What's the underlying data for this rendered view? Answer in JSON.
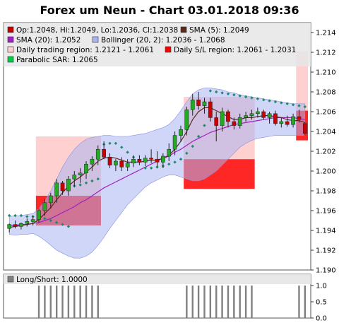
{
  "title": "Forex um Neun - Chart 03.01.2018 09:36",
  "legend": [
    {
      "label": "Op:1.2048, Hi:1.2049, Lo:1.2036, Cl:1.2038",
      "color": "#c00000"
    },
    {
      "label": "SMA (5): 1.2049",
      "color": "#5a2a1a"
    },
    {
      "label": "SMA (20): 1.2052",
      "color": "#a020c0"
    },
    {
      "label": "Bollinger (20, 2): 1.2036 - 1.2068",
      "color": "#aab4f0"
    },
    {
      "label": "Daily trading region: 1.2121 - 1.2061",
      "color": "#ffd0d0"
    },
    {
      "label": "Daily S/L region: 1.2061 - 1.2031",
      "color": "#ff0000"
    },
    {
      "label": "Parabolic SAR: 1.2065",
      "color": "#00cc44"
    }
  ],
  "lower_legend": {
    "label": "Long/Short: 1.0000",
    "color": "#808080"
  },
  "chart_data": [
    {
      "type": "candlestick",
      "ylim": [
        1.19,
        1.215
      ],
      "yticks": [
        "1.190",
        "1.192",
        "1.194",
        "1.196",
        "1.198",
        "1.200",
        "1.202",
        "1.204",
        "1.206",
        "1.208",
        "1.210",
        "1.212",
        "1.214"
      ],
      "candles": [
        {
          "o": 1.1942,
          "h": 1.1947,
          "l": 1.1938,
          "c": 1.1946
        },
        {
          "o": 1.1946,
          "h": 1.195,
          "l": 1.1942,
          "c": 1.1944
        },
        {
          "o": 1.1944,
          "h": 1.1948,
          "l": 1.1941,
          "c": 1.1947
        },
        {
          "o": 1.1947,
          "h": 1.1952,
          "l": 1.1944,
          "c": 1.1949
        },
        {
          "o": 1.1949,
          "h": 1.1955,
          "l": 1.1945,
          "c": 1.1951
        },
        {
          "o": 1.1951,
          "h": 1.1962,
          "l": 1.1948,
          "c": 1.196
        },
        {
          "o": 1.196,
          "h": 1.1972,
          "l": 1.1955,
          "c": 1.1968
        },
        {
          "o": 1.1968,
          "h": 1.1978,
          "l": 1.1962,
          "c": 1.1975
        },
        {
          "o": 1.1975,
          "h": 1.1992,
          "l": 1.1968,
          "c": 1.1988
        },
        {
          "o": 1.1988,
          "h": 1.199,
          "l": 1.1976,
          "c": 1.198
        },
        {
          "o": 1.198,
          "h": 1.1995,
          "l": 1.1975,
          "c": 1.1992
        },
        {
          "o": 1.1992,
          "h": 1.2,
          "l": 1.1984,
          "c": 1.1996
        },
        {
          "o": 1.1996,
          "h": 1.2003,
          "l": 1.1988,
          "c": 1.1998
        },
        {
          "o": 1.1998,
          "h": 1.201,
          "l": 1.1992,
          "c": 1.2007
        },
        {
          "o": 1.2007,
          "h": 1.2015,
          "l": 1.2,
          "c": 1.2012
        },
        {
          "o": 1.2012,
          "h": 1.2026,
          "l": 1.2006,
          "c": 1.2022
        },
        {
          "o": 1.2022,
          "h": 1.203,
          "l": 1.2012,
          "c": 1.2014
        },
        {
          "o": 1.2014,
          "h": 1.2018,
          "l": 1.2003,
          "c": 1.2006
        },
        {
          "o": 1.2006,
          "h": 1.2012,
          "l": 1.2,
          "c": 1.201
        },
        {
          "o": 1.201,
          "h": 1.2014,
          "l": 1.2,
          "c": 1.2004
        },
        {
          "o": 1.2004,
          "h": 1.2012,
          "l": 1.2,
          "c": 1.2008
        },
        {
          "o": 1.2008,
          "h": 1.2016,
          "l": 1.2004,
          "c": 1.2012
        },
        {
          "o": 1.2012,
          "h": 1.2016,
          "l": 1.2006,
          "c": 1.2009
        },
        {
          "o": 1.2009,
          "h": 1.2016,
          "l": 1.2005,
          "c": 1.2013
        },
        {
          "o": 1.2013,
          "h": 1.2022,
          "l": 1.2008,
          "c": 1.2012
        },
        {
          "o": 1.2012,
          "h": 1.202,
          "l": 1.2004,
          "c": 1.2009
        },
        {
          "o": 1.2009,
          "h": 1.2018,
          "l": 1.2003,
          "c": 1.2015
        },
        {
          "o": 1.2015,
          "h": 1.2028,
          "l": 1.201,
          "c": 1.2022
        },
        {
          "o": 1.2022,
          "h": 1.204,
          "l": 1.2016,
          "c": 1.2036
        },
        {
          "o": 1.2036,
          "h": 1.2046,
          "l": 1.203,
          "c": 1.2042
        },
        {
          "o": 1.2042,
          "h": 1.2065,
          "l": 1.2036,
          "c": 1.2062
        },
        {
          "o": 1.2062,
          "h": 1.2078,
          "l": 1.2056,
          "c": 1.2072
        },
        {
          "o": 1.2072,
          "h": 1.208,
          "l": 1.2062,
          "c": 1.2066
        },
        {
          "o": 1.2066,
          "h": 1.2074,
          "l": 1.2058,
          "c": 1.207
        },
        {
          "o": 1.207,
          "h": 1.2074,
          "l": 1.205,
          "c": 1.2054
        },
        {
          "o": 1.2054,
          "h": 1.206,
          "l": 1.203,
          "c": 1.2046
        },
        {
          "o": 1.2046,
          "h": 1.2064,
          "l": 1.204,
          "c": 1.206
        },
        {
          "o": 1.206,
          "h": 1.2062,
          "l": 1.2044,
          "c": 1.205
        },
        {
          "o": 1.205,
          "h": 1.2054,
          "l": 1.2042,
          "c": 1.2046
        },
        {
          "o": 1.2046,
          "h": 1.2058,
          "l": 1.2043,
          "c": 1.2054
        },
        {
          "o": 1.2054,
          "h": 1.206,
          "l": 1.205,
          "c": 1.2056
        },
        {
          "o": 1.2056,
          "h": 1.2062,
          "l": 1.2052,
          "c": 1.2058
        },
        {
          "o": 1.2058,
          "h": 1.2064,
          "l": 1.2054,
          "c": 1.206
        },
        {
          "o": 1.206,
          "h": 1.2062,
          "l": 1.2052,
          "c": 1.2054
        },
        {
          "o": 1.2054,
          "h": 1.206,
          "l": 1.2048,
          "c": 1.2058
        },
        {
          "o": 1.2058,
          "h": 1.2061,
          "l": 1.2046,
          "c": 1.2048
        },
        {
          "o": 1.2048,
          "h": 1.2054,
          "l": 1.2044,
          "c": 1.205
        },
        {
          "o": 1.205,
          "h": 1.2056,
          "l": 1.2045,
          "c": 1.2047
        },
        {
          "o": 1.2047,
          "h": 1.2058,
          "l": 1.2044,
          "c": 1.2055
        },
        {
          "o": 1.2055,
          "h": 1.2062,
          "l": 1.2049,
          "c": 1.2052
        },
        {
          "o": 1.2048,
          "h": 1.2049,
          "l": 1.2036,
          "c": 1.2038
        }
      ],
      "sma5": [
        1.1943,
        1.1944,
        1.1945,
        1.1946,
        1.1947,
        1.1951,
        1.1957,
        1.1963,
        1.1971,
        1.1978,
        1.1985,
        1.199,
        1.1994,
        1.1999,
        1.2004,
        1.201,
        1.2013,
        1.2014,
        1.2013,
        1.2011,
        1.2009,
        1.2009,
        1.2009,
        1.201,
        1.2011,
        1.2011,
        1.2013,
        1.2016,
        1.2022,
        1.203,
        1.204,
        1.2052,
        1.206,
        1.2064,
        1.2064,
        1.2061,
        1.2058,
        1.2055,
        1.2052,
        1.2052,
        1.2054,
        1.2054,
        1.2055,
        1.2056,
        1.2056,
        1.2055,
        1.2054,
        1.2052,
        1.2051,
        1.2051,
        1.2049
      ],
      "sma20": [
        1.1945,
        1.1945,
        1.1946,
        1.1946,
        1.1947,
        1.1948,
        1.195,
        1.1952,
        1.1955,
        1.1958,
        1.1961,
        1.1964,
        1.1968,
        1.1971,
        1.1975,
        1.1979,
        1.1983,
        1.1986,
        1.1989,
        1.1992,
        1.1995,
        1.1998,
        1.2001,
        1.2004,
        1.2007,
        1.201,
        1.2013,
        1.2015,
        1.2019,
        1.2022,
        1.2026,
        1.203,
        1.2033,
        1.2036,
        1.2039,
        1.2041,
        1.2043,
        1.2045,
        1.2047,
        1.2048,
        1.2049,
        1.205,
        1.2051,
        1.2052,
        1.2053,
        1.2054,
        1.2054,
        1.2054,
        1.2054,
        1.2053,
        1.2052
      ],
      "boll_upper": [
        1.1954,
        1.1955,
        1.1955,
        1.1956,
        1.1957,
        1.1962,
        1.197,
        1.198,
        1.1992,
        1.2004,
        1.2014,
        1.2022,
        1.2028,
        1.2032,
        1.2034,
        1.2035,
        1.2036,
        1.2036,
        1.2035,
        1.2035,
        1.2035,
        1.2036,
        1.2037,
        1.2038,
        1.204,
        1.2042,
        1.2044,
        1.2047,
        1.2053,
        1.2061,
        1.207,
        1.2078,
        1.2082,
        1.2084,
        1.2084,
        1.2083,
        1.2082,
        1.208,
        1.2079,
        1.2077,
        1.2076,
        1.2075,
        1.2074,
        1.2073,
        1.2072,
        1.2071,
        1.207,
        1.2069,
        1.2068,
        1.2068,
        1.2068
      ],
      "boll_lower": [
        1.1936,
        1.1935,
        1.1936,
        1.1936,
        1.1937,
        1.1934,
        1.193,
        1.1925,
        1.192,
        1.1917,
        1.1914,
        1.1912,
        1.1912,
        1.1914,
        1.1918,
        1.1925,
        1.1933,
        1.1942,
        1.195,
        1.1958,
        1.1966,
        1.1972,
        1.1978,
        1.1984,
        1.1988,
        1.1991,
        1.1994,
        1.1996,
        1.1996,
        1.1994,
        1.1992,
        1.199,
        1.199,
        1.1992,
        1.1996,
        1.2,
        1.2006,
        1.2012,
        1.2018,
        1.2024,
        1.2028,
        1.2031,
        1.2033,
        1.2034,
        1.2035,
        1.2036,
        1.2036,
        1.2036,
        1.2036,
        1.2036,
        1.2036
      ],
      "sar": [
        1.1955,
        1.1955,
        1.1955,
        1.1954,
        1.1954,
        1.1953,
        1.1952,
        1.195,
        1.1948,
        1.1946,
        1.1944,
        1.1985,
        1.1986,
        1.1988,
        1.199,
        1.1992,
        1.2027,
        1.2028,
        1.2028,
        1.2024,
        1.2019,
        1.2014,
        1.201,
        1.2003,
        1.2003,
        1.2004,
        1.2005,
        1.2007,
        1.2009,
        1.2012,
        1.2018,
        1.2025,
        1.2035,
        1.2046,
        1.2081,
        1.208,
        1.2079,
        1.2078,
        1.2077,
        1.2076,
        1.2075,
        1.2074,
        1.2073,
        1.2072,
        1.2071,
        1.207,
        1.2069,
        1.2068,
        1.2067,
        1.2066,
        1.2065
      ],
      "regions": [
        {
          "kind": "trading",
          "start": 5,
          "end": 16,
          "low": 1.1975,
          "high": 1.2035
        },
        {
          "kind": "sl",
          "start": 5,
          "end": 16,
          "low": 1.1945,
          "high": 1.1975
        },
        {
          "kind": "trading",
          "start": 30,
          "end": 42,
          "low": 1.2012,
          "high": 1.2075
        },
        {
          "kind": "sl",
          "start": 30,
          "end": 42,
          "low": 1.1982,
          "high": 1.2012
        },
        {
          "kind": "trading",
          "start": 49,
          "end": 51,
          "low": 1.2061,
          "high": 1.2121
        },
        {
          "kind": "sl",
          "start": 49,
          "end": 51,
          "low": 1.2031,
          "high": 1.2061
        }
      ]
    },
    {
      "type": "bar",
      "ylim": [
        0,
        1
      ],
      "yticks": [
        "0.0",
        "0.5",
        "1.0"
      ],
      "values": [
        0,
        0,
        0,
        0,
        0,
        1,
        1,
        1,
        1,
        1,
        1,
        1,
        1,
        1,
        1,
        1,
        0,
        0,
        0,
        0,
        0,
        0,
        0,
        0,
        0,
        0,
        0,
        0,
        0,
        0,
        1,
        1,
        1,
        1,
        1,
        1,
        1,
        1,
        1,
        1,
        1,
        1,
        0,
        0,
        0,
        0,
        0,
        0,
        0,
        1,
        1
      ]
    }
  ]
}
